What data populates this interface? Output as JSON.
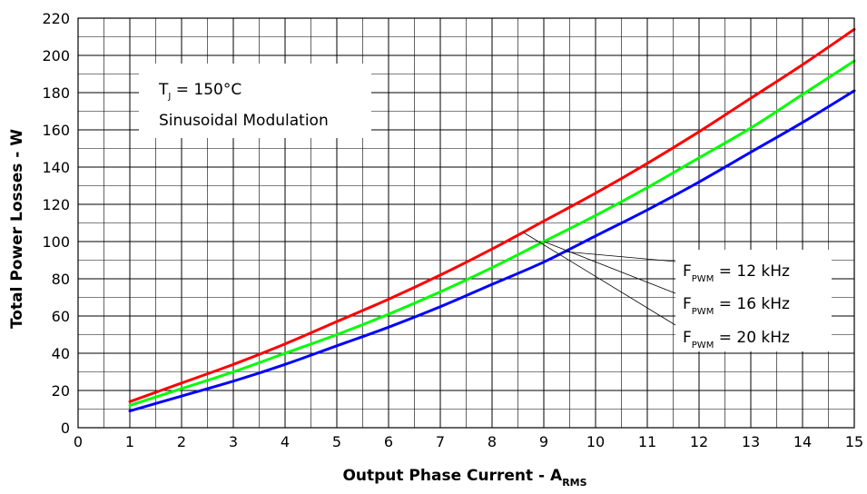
{
  "chart_data": {
    "type": "line",
    "xlabel": "Output Phase Current - A",
    "xlabel_sub": "RMS",
    "ylabel": "Total Power Losses - W",
    "xlim": [
      0,
      15
    ],
    "ylim": [
      0,
      220
    ],
    "xticks": [
      0,
      1,
      2,
      3,
      4,
      5,
      6,
      7,
      8,
      9,
      10,
      11,
      12,
      13,
      14,
      15
    ],
    "yticks": [
      0,
      20,
      40,
      60,
      80,
      100,
      120,
      140,
      160,
      180,
      200,
      220
    ],
    "x_minor_step": 0.5,
    "y_minor_step": 10,
    "grid": true,
    "annotation": {
      "tj_symbol": "T",
      "tj_sub": "J",
      "tj_value": " = 150°C",
      "modulation": "Sinusoidal Modulation"
    },
    "series": [
      {
        "symbol": "F",
        "sub": "PWM",
        "value": " = 20 kHz",
        "color": "#ff0000",
        "x": [
          1,
          2,
          3,
          4,
          5,
          6,
          7,
          8,
          9,
          10,
          11,
          12,
          13,
          14,
          15
        ],
        "y": [
          14,
          24,
          34,
          45,
          57,
          69,
          82,
          96,
          111,
          126,
          142,
          159,
          177,
          195,
          214
        ]
      },
      {
        "symbol": "F",
        "sub": "PWM",
        "value": " = 16 kHz",
        "color": "#00ff00",
        "x": [
          1,
          2,
          3,
          4,
          5,
          6,
          7,
          8,
          9,
          10,
          11,
          12,
          13,
          14,
          15
        ],
        "y": [
          12,
          21,
          30,
          40,
          50,
          61,
          73,
          86,
          100,
          114,
          129,
          145,
          161,
          179,
          197
        ]
      },
      {
        "symbol": "F",
        "sub": "PWM",
        "value": " = 12 kHz",
        "color": "#0000ff",
        "x": [
          1,
          2,
          3,
          4,
          5,
          6,
          7,
          8,
          9,
          10,
          11,
          12,
          13,
          14,
          15
        ],
        "y": [
          9,
          17,
          25,
          34,
          44,
          54,
          65,
          77,
          89,
          103,
          117,
          132,
          148,
          164,
          181
        ]
      }
    ]
  }
}
